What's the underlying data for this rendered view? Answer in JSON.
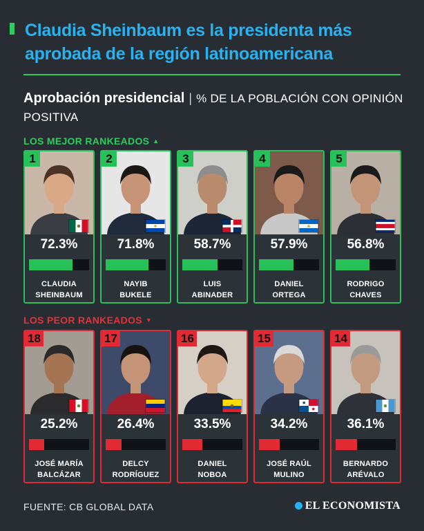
{
  "header": {
    "title": "Claudia Sheinbaum es la presidenta más aprobada de la región latinoamericana",
    "subtitle_bold": "Aprobación presidencial",
    "subtitle_rest": "% DE LA POBLACIÓN CON OPINIÓN POSITIVA"
  },
  "sections": {
    "top": "LOS MEJOR RANKEADOS",
    "bottom": "LOS PEOR RANKEADOS"
  },
  "footer": {
    "source": "FUENTE: CB GLOBAL DATA",
    "logo": "EL ECONOMISTA"
  },
  "colors": {
    "title": "#28b2ef",
    "good": "#27c15a",
    "bad": "#e12a34",
    "background": "#272d33"
  },
  "chart_data": [
    {
      "type": "bar",
      "title": "LOS MEJOR RANKEADOS",
      "ylim": [
        0,
        100
      ],
      "categories": [
        "CLAUDIA SHEINBAUM",
        "NAYIB BUKELE",
        "LUIS ABINADER",
        "DANIEL ORTEGA",
        "RODRIGO CHAVES"
      ],
      "values": [
        72.3,
        71.8,
        58.7,
        57.9,
        56.8
      ],
      "items": [
        {
          "rank": "1",
          "value": 72.3,
          "label": "72.3%",
          "name1": "CLAUDIA",
          "name2": "SHEINBAUM",
          "flag": "mexico"
        },
        {
          "rank": "2",
          "value": 71.8,
          "label": "71.8%",
          "name1": "NAYIB",
          "name2": "BUKELE",
          "flag": "el-salvador"
        },
        {
          "rank": "3",
          "value": 58.7,
          "label": "58.7%",
          "name1": "LUIS",
          "name2": "ABINADER",
          "flag": "dominican-republic"
        },
        {
          "rank": "4",
          "value": 57.9,
          "label": "57.9%",
          "name1": "DANIEL",
          "name2": "ORTEGA",
          "flag": "nicaragua"
        },
        {
          "rank": "5",
          "value": 56.8,
          "label": "56.8%",
          "name1": "RODRIGO",
          "name2": "CHAVES",
          "flag": "costa-rica"
        }
      ]
    },
    {
      "type": "bar",
      "title": "LOS PEOR RANKEADOS",
      "ylim": [
        0,
        100
      ],
      "categories": [
        "JOSÉ MARÍA BALCÁZAR",
        "DELCY RODRÍGUEZ",
        "DANIEL NOBOA",
        "JOSÉ RAÚL MULINO",
        "BERNARDO ARÉVALO"
      ],
      "values": [
        25.2,
        26.4,
        33.5,
        34.2,
        36.1
      ],
      "items": [
        {
          "rank": "18",
          "value": 25.2,
          "label": "25.2%",
          "name1": "JOSÉ MARÍA",
          "name2": "BALCÁZAR",
          "flag": "peru"
        },
        {
          "rank": "17",
          "value": 26.4,
          "label": "26.4%",
          "name1": "DELCY",
          "name2": "RODRÍGUEZ",
          "flag": "venezuela"
        },
        {
          "rank": "16",
          "value": 33.5,
          "label": "33.5%",
          "name1": "DANIEL",
          "name2": "NOBOA",
          "flag": "ecuador"
        },
        {
          "rank": "15",
          "value": 34.2,
          "label": "34.2%",
          "name1": "JOSÉ RAÚL",
          "name2": "MULINO",
          "flag": "panama"
        },
        {
          "rank": "14",
          "value": 36.1,
          "label": "36.1%",
          "name1": "BERNARDO",
          "name2": "ARÉVALO",
          "flag": "guatemala"
        }
      ]
    }
  ]
}
